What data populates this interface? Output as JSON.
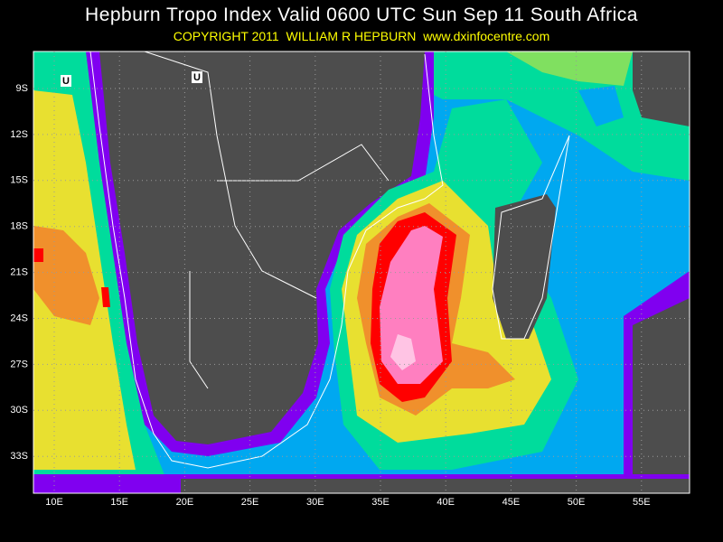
{
  "header": {
    "title": "Hepburn Tropo Index Valid 0600 UTC Sun Sep 11 South Africa",
    "copyright": "COPYRIGHT 2011  WILLIAM R HEPBURN  www.dxinfocentre.com"
  },
  "map": {
    "lat_labels": [
      "9S",
      "12S",
      "15S",
      "18S",
      "21S",
      "24S",
      "27S",
      "30S",
      "33S"
    ],
    "lon_labels": [
      "10E",
      "15E",
      "20E",
      "25E",
      "30E",
      "35E",
      "40E",
      "45E",
      "50E",
      "55E"
    ],
    "markers": [
      "U",
      "U"
    ]
  }
}
